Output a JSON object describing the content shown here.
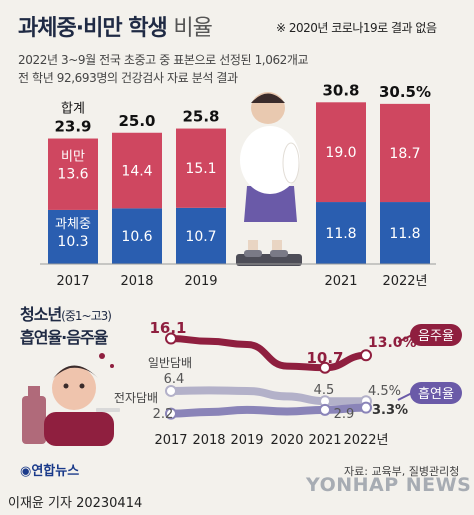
{
  "header": {
    "title_main": "과체중·비만 학생",
    "title_light": "비율",
    "note": "※ 2020년 코로나19로 결과 없음",
    "subtitle_line1": "2022년 3~9월 전국 초중고 중 표본으로 선정된 1,062개교",
    "subtitle_line2": "전 학년 92,693명의 건강검사 자료 분석 결과"
  },
  "chart_data": [
    {
      "type": "bar",
      "stacked": true,
      "categories": [
        "2017",
        "2018",
        "2019",
        "2021",
        "2022년"
      ],
      "series": [
        {
          "name": "과체중",
          "values": [
            10.3,
            10.6,
            10.7,
            11.8,
            11.8
          ],
          "color": "#2a5eb0"
        },
        {
          "name": "비만",
          "values": [
            13.6,
            14.4,
            15.1,
            19.0,
            18.7
          ],
          "color": "#cf4760"
        }
      ],
      "totals": [
        "23.9",
        "25.0",
        "25.8",
        "30.8",
        "30.5%"
      ],
      "total_label": "합계",
      "note_missing": "2020"
    },
    {
      "type": "line",
      "title_line1": "청소년",
      "title_small": "(중1~고3)",
      "title_line2": "흡연율·음주율",
      "x": [
        "2017",
        "2018",
        "2019",
        "2020",
        "2021",
        "2022년"
      ],
      "series": [
        {
          "name": "음주율",
          "values": [
            16.1,
            null,
            null,
            null,
            10.7,
            13.0
          ],
          "labels": [
            "16.1",
            "10.7",
            "13.0%"
          ],
          "color": "#8f1f3f"
        },
        {
          "name": "일반담배",
          "values": [
            6.4,
            null,
            null,
            null,
            4.5,
            4.5
          ],
          "labels": [
            "6.4",
            "4.5",
            "4.5%"
          ],
          "color": "#b3b1c9"
        },
        {
          "name": "전자담배",
          "values": [
            2.2,
            null,
            null,
            null,
            2.9,
            3.3
          ],
          "labels": [
            "2.2",
            "2.9",
            "3.3%"
          ],
          "color": "#8a84b8"
        }
      ],
      "legend_drinking": "음주율",
      "legend_smoking": "흡연율"
    }
  ],
  "footer": {
    "logo_text": "연합뉴스",
    "source": "자료: 교육부, 질병관리청",
    "reporter": "이재윤 기자  20230414",
    "watermark": "YONHAP NEWS"
  },
  "colors": {
    "background": "#f3f1ec",
    "overweight": "#2a5eb0",
    "obese": "#cf4760",
    "drinking": "#8f1f3f",
    "smoking": "#8a84b8"
  }
}
